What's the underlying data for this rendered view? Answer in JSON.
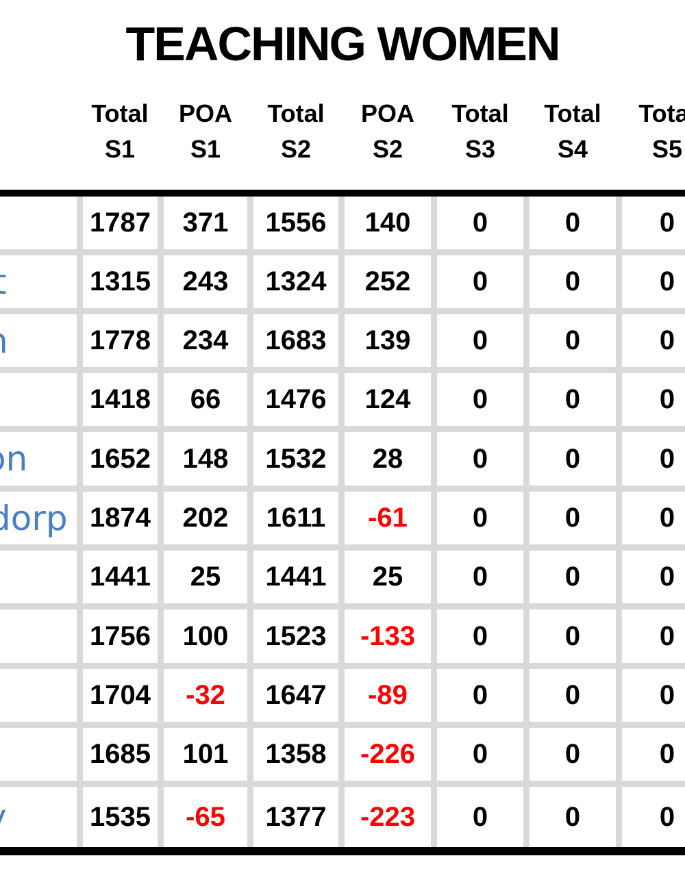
{
  "title": "TEACHING WOMEN",
  "table": {
    "columns": [
      {
        "line1": "Total",
        "line2": "S1"
      },
      {
        "line1": "POA",
        "line2": "S1"
      },
      {
        "line1": "Total",
        "line2": "S2"
      },
      {
        "line1": "POA",
        "line2": "S2"
      },
      {
        "line1": "Total",
        "line2": "S3"
      },
      {
        "line1": "Total",
        "line2": "S4"
      },
      {
        "line1": "Total",
        "line2": "S5"
      }
    ],
    "rows": [
      {
        "label_fragment": "",
        "values": [
          1787,
          371,
          1556,
          140,
          0,
          0,
          0
        ]
      },
      {
        "label_fragment": "t",
        "values": [
          1315,
          243,
          1324,
          252,
          0,
          0,
          0
        ]
      },
      {
        "label_fragment": "n",
        "values": [
          1778,
          234,
          1683,
          139,
          0,
          0,
          0
        ]
      },
      {
        "label_fragment": "",
        "values": [
          1418,
          66,
          1476,
          124,
          0,
          0,
          0
        ]
      },
      {
        "label_fragment": "on",
        "values": [
          1652,
          148,
          1532,
          28,
          0,
          0,
          0
        ]
      },
      {
        "label_fragment": "dorp",
        "values": [
          1874,
          202,
          1611,
          -61,
          0,
          0,
          0
        ]
      },
      {
        "label_fragment": "",
        "values": [
          1441,
          25,
          1441,
          25,
          0,
          0,
          0
        ]
      },
      {
        "label_fragment": "",
        "values": [
          1756,
          100,
          1523,
          -133,
          0,
          0,
          0
        ]
      },
      {
        "label_fragment": "",
        "values": [
          1704,
          -32,
          1647,
          -89,
          0,
          0,
          0
        ]
      },
      {
        "label_fragment": "",
        "values": [
          1685,
          101,
          1358,
          -226,
          0,
          0,
          0
        ]
      },
      {
        "label_fragment": "y",
        "values": [
          1535,
          -65,
          1377,
          -223,
          0,
          0,
          0
        ]
      }
    ]
  },
  "colors": {
    "negative_value": "#ff0000",
    "positive_value": "#000000",
    "label_text": "#4a7fc1",
    "gridline": "#d9d9d9",
    "thick_border": "#000000",
    "background": "#ffffff"
  }
}
